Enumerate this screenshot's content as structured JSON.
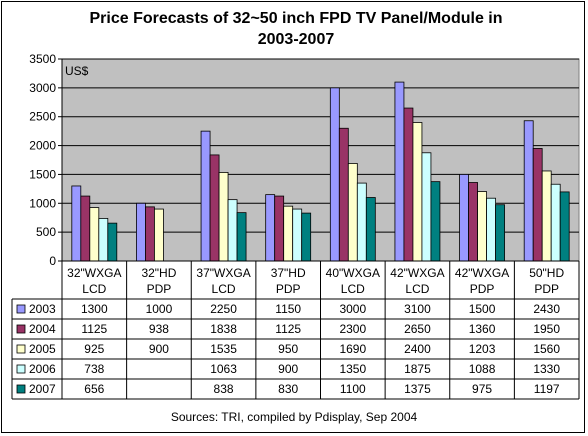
{
  "chart_data": {
    "type": "bar",
    "title_line1": "Price Forecasts of 32~50 inch FPD TV Panel/Module in",
    "title_line2": "2003-2007",
    "unit_label": "US$",
    "ylim": [
      0,
      3500
    ],
    "yticks": [
      0,
      500,
      1000,
      1500,
      2000,
      2500,
      3000,
      3500
    ],
    "categories": [
      {
        "line1": "32\"WXGA",
        "line2": "LCD"
      },
      {
        "line1": "32\"HD",
        "line2": "PDP"
      },
      {
        "line1": "37\"WXGA",
        "line2": "LCD"
      },
      {
        "line1": "37\"HD",
        "line2": "PDP"
      },
      {
        "line1": "40\"WXGA",
        "line2": "LCD"
      },
      {
        "line1": "42\"WXGA",
        "line2": "LCD"
      },
      {
        "line1": "42\"WXGA",
        "line2": "PDP"
      },
      {
        "line1": "50\"HD",
        "line2": "PDP"
      }
    ],
    "series": [
      {
        "name": "2003",
        "color": "#9999ff",
        "values": [
          1300,
          1000,
          2250,
          1150,
          3000,
          3100,
          1500,
          2430
        ]
      },
      {
        "name": "2004",
        "color": "#993366",
        "values": [
          1125,
          938,
          1838,
          1125,
          2300,
          2650,
          1360,
          1950
        ]
      },
      {
        "name": "2005",
        "color": "#ffffcc",
        "values": [
          925,
          900,
          1535,
          950,
          1690,
          2400,
          1203,
          1560
        ]
      },
      {
        "name": "2006",
        "color": "#ccffff",
        "values": [
          738,
          null,
          1063,
          900,
          1350,
          1875,
          1088,
          1330
        ]
      },
      {
        "name": "2007",
        "color": "#008080",
        "values": [
          656,
          null,
          838,
          830,
          1100,
          1375,
          975,
          1197
        ]
      }
    ],
    "plot_background": "#c0c0c0",
    "gridlines": true,
    "legend": "data-table"
  },
  "source": "Sources: TRI, compiled by Pdisplay, Sep 2004"
}
